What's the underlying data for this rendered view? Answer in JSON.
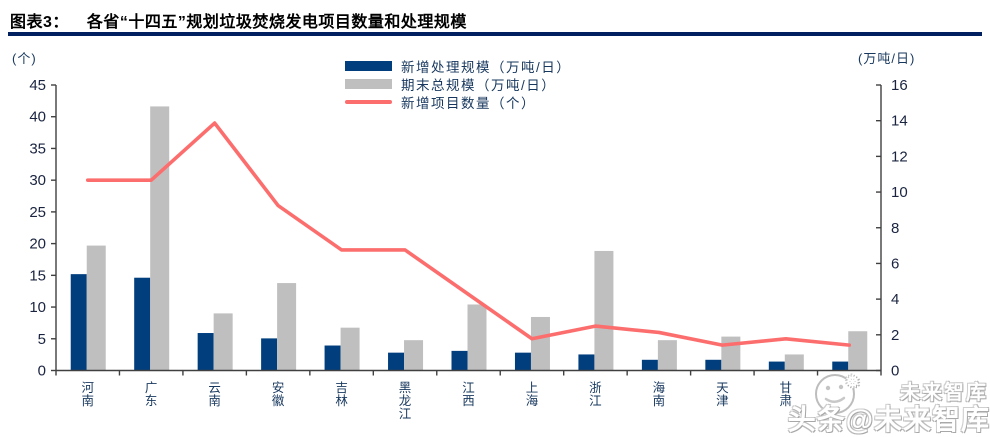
{
  "title": {
    "tag": "图表3：",
    "text": "各省“十四五”规划垃圾焚烧发电项目数量和处理规模"
  },
  "colors": {
    "rule_navy": "#002060",
    "bar_blue": "#003E7E",
    "bar_gray": "#BFBFBF",
    "line_red": "#FC6E6E",
    "axis_line": "#404040",
    "chart_text": "#17375E"
  },
  "legend": [
    {
      "label": "新增处理规模（万吨/日）",
      "type": "bar",
      "color": "#003E7E"
    },
    {
      "label": "期末总规模（万吨/日）",
      "type": "bar",
      "color": "#BFBFBF"
    },
    {
      "label": "新增项目数量（个）",
      "type": "line",
      "color": "#FC6E6E"
    }
  ],
  "watermark": {
    "small": "未来智库",
    "big": "头条@未来智库",
    "flake": "❅"
  },
  "chart_data": {
    "type": "bar+line combo",
    "title": "各省“十四五”规划垃圾焚烧发电项目数量和处理规模",
    "categories": [
      "河南",
      "广东",
      "云南",
      "安徽",
      "吉林",
      "黑龙江",
      "江西",
      "上海",
      "浙江",
      "海南",
      "天津",
      "甘肃",
      ""
    ],
    "last_category_label_obscured_by_watermark": true,
    "series": [
      {
        "name": "新增处理规模（万吨/日）",
        "type": "bar",
        "axis": "right",
        "values": [
          5.4,
          5.2,
          2.1,
          1.8,
          1.4,
          1.0,
          1.1,
          1.0,
          0.9,
          0.6,
          0.6,
          0.5,
          0.5
        ]
      },
      {
        "name": "期末总规模（万吨/日）",
        "type": "bar",
        "axis": "right",
        "values": [
          7.0,
          14.8,
          3.2,
          4.9,
          2.4,
          1.7,
          3.7,
          3.0,
          6.7,
          1.7,
          1.9,
          0.9,
          2.2
        ]
      },
      {
        "name": "新增项目数量（个）",
        "type": "line",
        "axis": "left",
        "values": [
          30,
          30,
          39,
          26,
          19,
          19,
          12,
          5,
          7,
          6,
          4,
          5,
          4
        ]
      }
    ],
    "left_axis": {
      "unit": "(个)",
      "min": 0,
      "max": 45,
      "ticks": [
        0,
        5,
        10,
        15,
        20,
        25,
        30,
        35,
        40,
        45
      ]
    },
    "right_axis": {
      "unit": "(万吨/日)",
      "min": 0,
      "max": 16,
      "ticks": [
        0,
        2,
        4,
        6,
        8,
        10,
        12,
        14,
        16
      ]
    },
    "grid": "off",
    "legend_position": "top-center"
  }
}
